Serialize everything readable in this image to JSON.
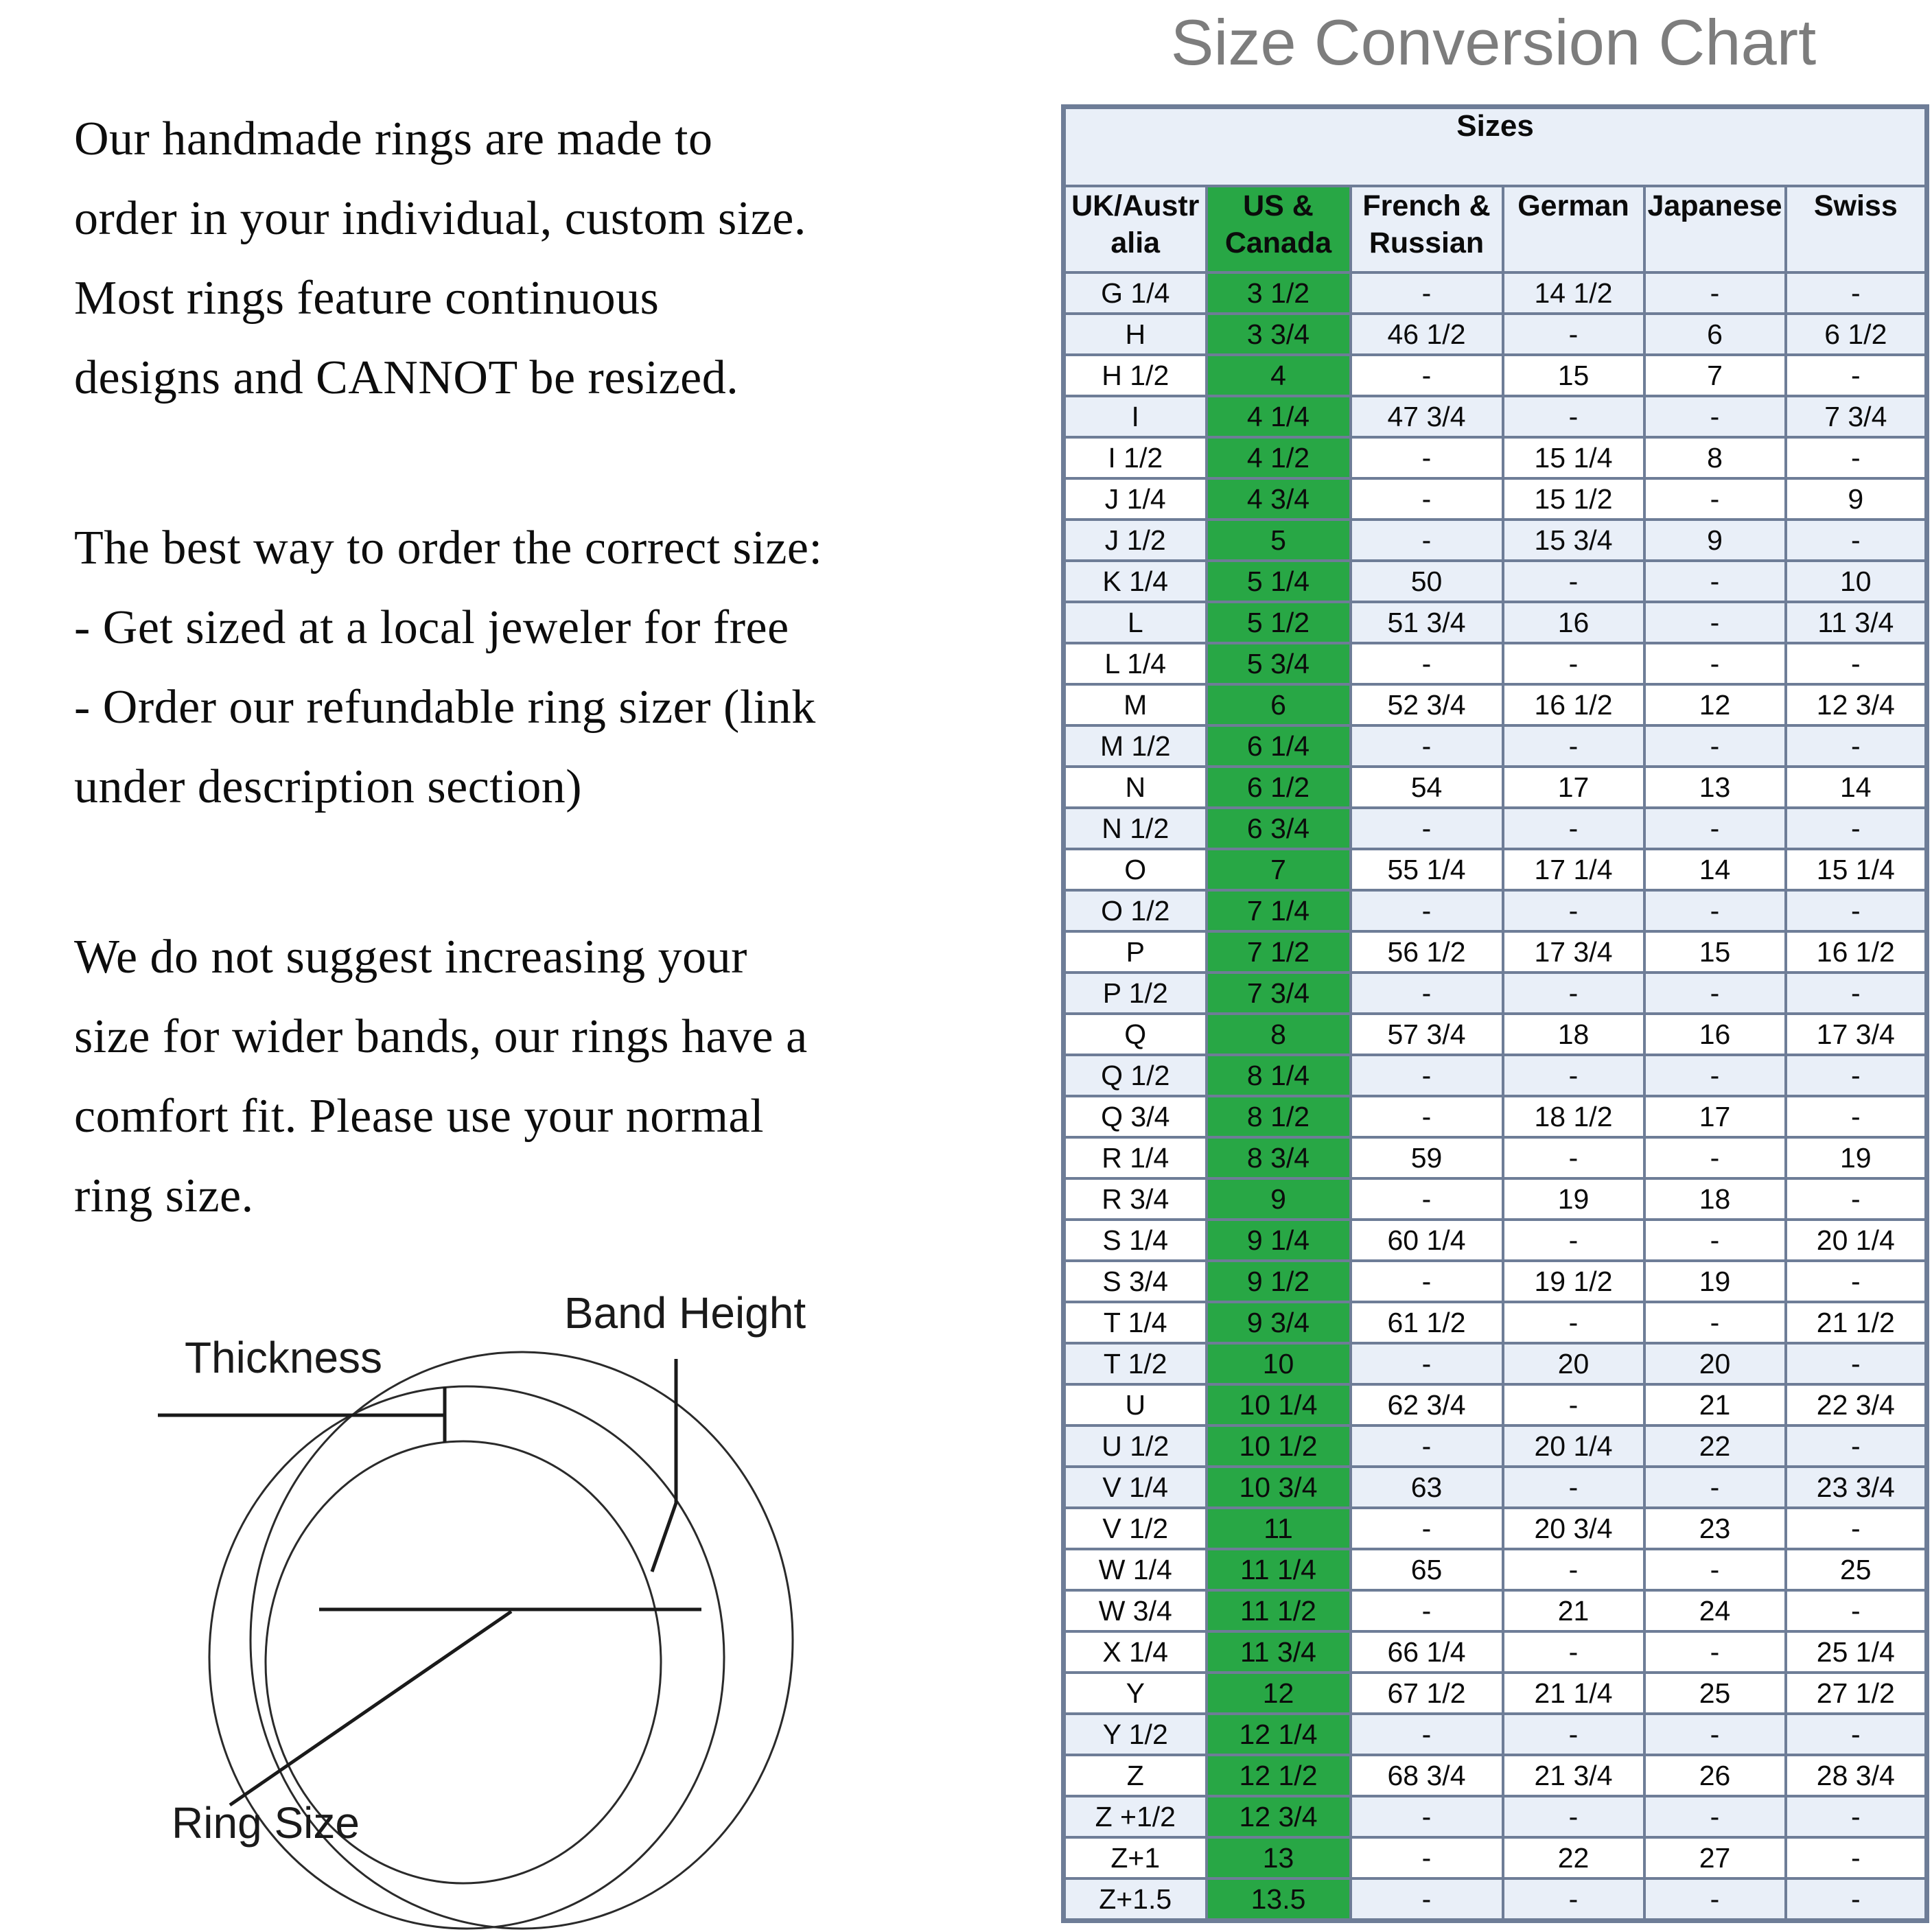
{
  "title": "Size Conversion Chart",
  "intro": {
    "paragraphs": [
      "Our handmade rings are made to\norder in your individual, custom size.\nMost rings feature continuous\ndesigns and CANNOT be resized.",
      "The best way to order the correct size:\n- Get sized at a local jeweler for free\n- Order our refundable ring sizer (link\nunder description section)",
      "We do not suggest increasing your\nsize for wider bands, our rings have a\ncomfort fit. Please use your normal\nring size."
    ]
  },
  "diagram": {
    "labels": {
      "thickness": "Thickness",
      "band_height": "Band Height",
      "ring_size": "Ring Size"
    }
  },
  "chart_data": {
    "type": "table",
    "title": "Size Conversion Chart",
    "merged_header": "Sizes",
    "columns": [
      "UK/Australia",
      "US & Canada",
      "French & Russian",
      "German",
      "Japanese",
      "Swiss"
    ],
    "column_display": [
      "UK/Austr\nalia",
      "US &\nCanada",
      "French &\nRussian",
      "German",
      "Japanese",
      "Swiss"
    ],
    "highlight_column": "US & Canada",
    "highlight_column_index": 1,
    "rows": [
      [
        "G 1/4",
        "3 1/2",
        "-",
        "14 1/2",
        "-",
        "-"
      ],
      [
        "H",
        "3 3/4",
        "46 1/2",
        "-",
        "6",
        "6 1/2"
      ],
      [
        "H 1/2",
        "4",
        "-",
        "15",
        "7",
        "-"
      ],
      [
        "I",
        "4 1/4",
        "47 3/4",
        "-",
        "-",
        "7 3/4"
      ],
      [
        "I 1/2",
        "4 1/2",
        "-",
        "15 1/4",
        "8",
        "-"
      ],
      [
        "J 1/4",
        "4 3/4",
        "-",
        "15 1/2",
        "-",
        "9"
      ],
      [
        "J 1/2",
        "5",
        "-",
        "15 3/4",
        "9",
        "-"
      ],
      [
        "K 1/4",
        "5 1/4",
        "50",
        "-",
        "-",
        "10"
      ],
      [
        "L",
        "5 1/2",
        "51 3/4",
        "16",
        "-",
        "11 3/4"
      ],
      [
        "L 1/4",
        "5 3/4",
        "-",
        "-",
        "-",
        "-"
      ],
      [
        "M",
        "6",
        "52 3/4",
        "16 1/2",
        "12",
        "12 3/4"
      ],
      [
        "M 1/2",
        "6 1/4",
        "-",
        "-",
        "-",
        "-"
      ],
      [
        "N",
        "6 1/2",
        "54",
        "17",
        "13",
        "14"
      ],
      [
        "N 1/2",
        "6 3/4",
        "-",
        "-",
        "-",
        "-"
      ],
      [
        "O",
        "7",
        "55 1/4",
        "17 1/4",
        "14",
        "15 1/4"
      ],
      [
        "O 1/2",
        "7 1/4",
        "-",
        "-",
        "-",
        "-"
      ],
      [
        "P",
        "7 1/2",
        "56 1/2",
        "17 3/4",
        "15",
        "16 1/2"
      ],
      [
        "P 1/2",
        "7 3/4",
        "-",
        "-",
        "-",
        "-"
      ],
      [
        "Q",
        "8",
        "57 3/4",
        "18",
        "16",
        "17 3/4"
      ],
      [
        "Q 1/2",
        "8 1/4",
        "-",
        "-",
        "-",
        "-"
      ],
      [
        "Q 3/4",
        "8 1/2",
        "-",
        "18 1/2",
        "17",
        "-"
      ],
      [
        "R 1/4",
        "8 3/4",
        "59",
        "-",
        "-",
        "19"
      ],
      [
        "R 3/4",
        "9",
        "-",
        "19",
        "18",
        "-"
      ],
      [
        "S 1/4",
        "9 1/4",
        "60 1/4",
        "-",
        "-",
        "20 1/4"
      ],
      [
        "S 3/4",
        "9 1/2",
        "-",
        "19 1/2",
        "19",
        "-"
      ],
      [
        "T 1/4",
        "9 3/4",
        "61 1/2",
        "-",
        "-",
        "21 1/2"
      ],
      [
        "T 1/2",
        "10",
        "-",
        "20",
        "20",
        "-"
      ],
      [
        "U",
        "10 1/4",
        "62 3/4",
        "-",
        "21",
        "22 3/4"
      ],
      [
        "U 1/2",
        "10 1/2",
        "-",
        "20 1/4",
        "22",
        "-"
      ],
      [
        "V 1/4",
        "10 3/4",
        "63",
        "-",
        "-",
        "23 3/4"
      ],
      [
        "V 1/2",
        "11",
        "-",
        "20 3/4",
        "23",
        "-"
      ],
      [
        "W 1/4",
        "11 1/4",
        "65",
        "-",
        "-",
        "25"
      ],
      [
        "W 3/4",
        "11 1/2",
        "-",
        "21",
        "24",
        "-"
      ],
      [
        "X 1/4",
        "11 3/4",
        "66 1/4",
        "-",
        "-",
        "25 1/4"
      ],
      [
        "Y",
        "12",
        "67 1/2",
        "21 1/4",
        "25",
        "27 1/2"
      ],
      [
        "Y 1/2",
        "12 1/4",
        "-",
        "-",
        "-",
        "-"
      ],
      [
        "Z",
        "12 1/2",
        "68 3/4",
        "21 3/4",
        "26",
        "28 3/4"
      ],
      [
        "Z +1/2",
        "12 3/4",
        "-",
        "-",
        "-",
        "-"
      ],
      [
        "Z+1",
        "13",
        "-",
        "22",
        "27",
        "-"
      ],
      [
        "Z+1.5",
        "13.5",
        "-",
        "-",
        "-",
        "-"
      ]
    ],
    "row_shading": [
      "b",
      "b",
      "w",
      "b",
      "w",
      "w",
      "b",
      "b",
      "b",
      "w",
      "w",
      "b",
      "w",
      "b",
      "w",
      "b",
      "w",
      "b",
      "w",
      "b",
      "w",
      "w",
      "w",
      "w",
      "w",
      "w",
      "b",
      "w",
      "b",
      "b",
      "w",
      "w",
      "w",
      "w",
      "w",
      "b",
      "w",
      "b",
      "w",
      "b"
    ],
    "empty_value_placeholder": "-"
  },
  "colors": {
    "highlight_green": "#28a745",
    "row_blue": "#e9eff8",
    "border_gray_blue": "#6e7d97",
    "title_gray": "#7d7d7d"
  }
}
